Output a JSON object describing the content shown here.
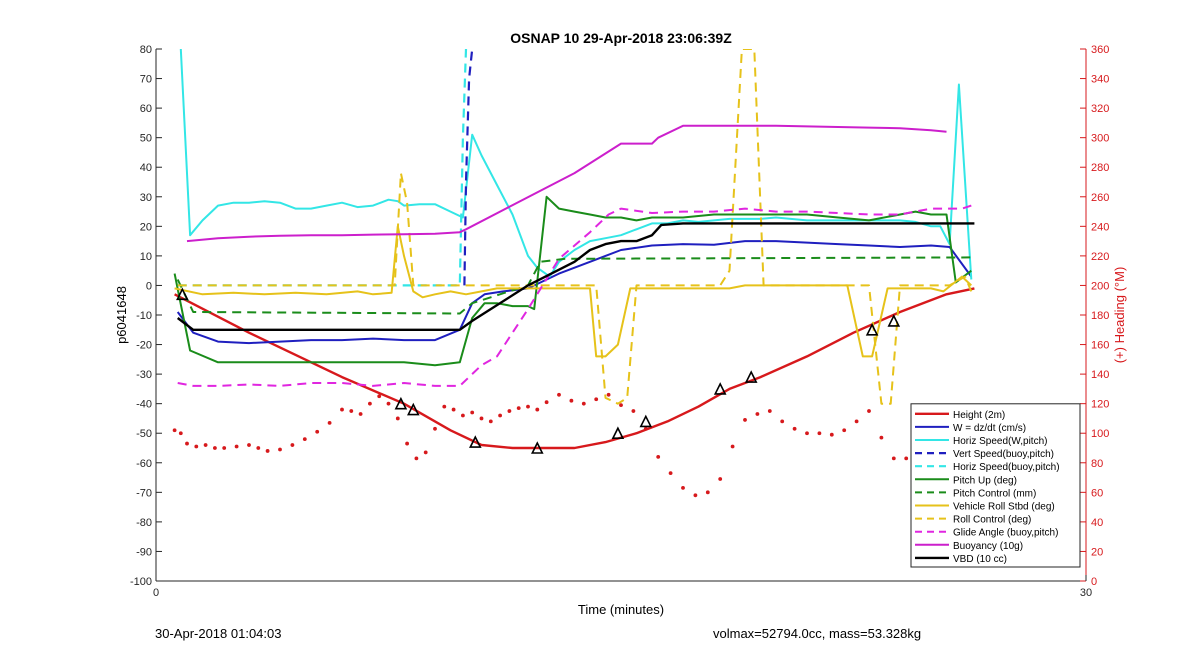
{
  "chart_data": {
    "type": "line",
    "title": "OSNAP 10 29-Apr-2018 23:06:39Z",
    "xlabel": "Time (minutes)",
    "ylabel": "p6041648",
    "ylabel_right": "(+) Heading (°M)",
    "xlim": [
      0,
      30
    ],
    "ylim": [
      -100,
      80
    ],
    "ylim_right": [
      0,
      360
    ],
    "x_ticks": [
      "0",
      "30"
    ],
    "y_ticks": [
      "80",
      "70",
      "60",
      "50",
      "40",
      "30",
      "20",
      "10",
      "0",
      "-10",
      "-20",
      "-30",
      "-40",
      "-50",
      "-60",
      "-70",
      "-80",
      "-90",
      "-100"
    ],
    "y_ticks_right": [
      "360",
      "340",
      "320",
      "300",
      "280",
      "260",
      "240",
      "220",
      "200",
      "180",
      "160",
      "140",
      "120",
      "100",
      "80",
      "60",
      "40",
      "20",
      "0"
    ],
    "grid": false,
    "legend_position": "bottom-right",
    "series": [
      {
        "name": "Height (2m)",
        "color": "#d7191c",
        "style": "solid",
        "width": 2.4,
        "x": [
          0.6,
          3.0,
          6.0,
          8.0,
          9.5,
          10.5,
          11.5,
          12.5,
          13.5,
          14.5,
          15.5,
          16.5,
          17.5,
          18.5,
          19.5,
          21.0,
          22.5,
          24.0,
          25.5,
          26.4
        ],
        "y": [
          -3,
          -16,
          -31,
          -40,
          -49,
          -54,
          -55,
          -55,
          -55,
          -53,
          -50,
          -46,
          -41,
          -35,
          -31,
          -24,
          -16,
          -9,
          -3,
          -1
        ]
      },
      {
        "name": "W = dz/dt (cm/s)",
        "color": "#1f1fbf",
        "style": "solid",
        "width": 2,
        "x": [
          0.7,
          1.2,
          2.0,
          3.0,
          4.0,
          5.0,
          6.0,
          7.0,
          8.0,
          9.0,
          9.8,
          10.2,
          10.6,
          11.2,
          12.0,
          13.0,
          14.0,
          15.0,
          16.0,
          17.0,
          18.0,
          19.0,
          20.0,
          21.0,
          22.0,
          23.0,
          24.0,
          25.0,
          25.6,
          26.3
        ],
        "y": [
          -9,
          -16,
          -19,
          -19.5,
          -19,
          -18.5,
          -18.5,
          -18,
          -18.5,
          -18.5,
          -15,
          -6,
          -3,
          -2,
          -1,
          4,
          8,
          12,
          13.5,
          14,
          13.8,
          15,
          15,
          14.5,
          14,
          13.5,
          13,
          13.5,
          13,
          3
        ]
      },
      {
        "name": "Horiz Speed(W,pitch)",
        "color": "#33e6e6",
        "style": "solid",
        "width": 2,
        "x": [
          0.8,
          1.1,
          1.5,
          2.0,
          2.5,
          3.0,
          3.5,
          4.0,
          4.5,
          5.0,
          5.5,
          6.0,
          6.5,
          7.0,
          7.5,
          7.8,
          8.0,
          8.5,
          9.0,
          9.5,
          9.9,
          10.2,
          10.5,
          11.0,
          11.5,
          12.0,
          12.3,
          12.7,
          13.0,
          13.5,
          14.0,
          14.5,
          15.0,
          15.5,
          16.0,
          16.5,
          17.0,
          17.5,
          18.0,
          18.5,
          19.0,
          19.5,
          20.0,
          21.0,
          22.0,
          23.0,
          24.0,
          24.5,
          25.0,
          25.3,
          25.6,
          25.9,
          26.3
        ],
        "y": [
          80,
          17,
          22,
          27,
          28,
          28,
          28.5,
          28,
          26,
          26,
          27,
          28,
          26.5,
          27,
          29,
          28.5,
          27,
          27.5,
          27.5,
          25,
          23,
          51,
          44,
          34,
          24,
          10,
          6,
          3,
          8,
          12,
          15,
          16,
          17,
          19,
          21,
          21,
          22,
          21.5,
          22,
          22.5,
          22.5,
          22.5,
          23,
          22,
          22,
          22,
          22,
          21.5,
          20,
          20,
          14,
          68,
          2
        ]
      },
      {
        "name": "Vert Speed(buoy,pitch)",
        "color": "#1f1fbf",
        "style": "dashed",
        "width": 2.2,
        "x": [
          9.95,
          10.0,
          10.1,
          10.2
        ],
        "y": [
          0,
          35,
          70,
          80
        ]
      },
      {
        "name": "Horiz Speed(buoy,pitch)",
        "color": "#33e6e6",
        "style": "dashed",
        "width": 2.2,
        "x": [
          0.7,
          9.8,
          9.8,
          9.9,
          10.0
        ],
        "y": [
          0,
          0,
          0,
          50,
          80
        ]
      },
      {
        "name": "Pitch Up (deg)",
        "color": "#1a8c1a",
        "style": "solid",
        "width": 2,
        "x": [
          0.6,
          1.1,
          2.0,
          3.0,
          4.0,
          5.0,
          6.0,
          7.0,
          8.0,
          9.0,
          9.8,
          10.2,
          10.6,
          11.0,
          11.5,
          12.0,
          12.2,
          12.6,
          13.0,
          13.5,
          14.0,
          14.5,
          15.0,
          15.5,
          16.0,
          17.0,
          18.0,
          19.0,
          20.0,
          21.0,
          22.0,
          23.0,
          24.0,
          24.5,
          25.0,
          25.5,
          25.8,
          26.3
        ],
        "y": [
          4,
          -22,
          -26,
          -26,
          -26,
          -26,
          -26,
          -26,
          -26,
          -27,
          -26,
          -11,
          -6,
          -6,
          -7,
          -7,
          -8,
          30,
          26,
          25,
          24,
          23,
          23,
          22,
          23,
          23,
          24,
          24,
          24,
          24,
          23,
          22,
          24,
          25,
          24,
          24,
          1,
          5
        ]
      },
      {
        "name": "Pitch Control (mm)",
        "color": "#1a8c1a",
        "style": "dashed",
        "width": 2,
        "x": [
          0.7,
          1.2,
          9.8,
          10.2,
          12.0,
          12.4,
          13.2,
          26.4
        ],
        "y": [
          2,
          -9,
          -9.5,
          -6,
          0,
          8,
          9,
          9.5
        ]
      },
      {
        "name": "Vehicle Roll Stbd (deg)",
        "color": "#e6c21a",
        "style": "solid",
        "width": 2,
        "x": [
          0.6,
          1.5,
          2.5,
          3.5,
          4.5,
          5.5,
          6.5,
          7.0,
          7.6,
          7.8,
          8.0,
          8.3,
          8.6,
          9.0,
          9.5,
          10.0,
          10.5,
          11.0,
          11.5,
          12.0,
          12.5,
          13.0,
          13.5,
          14.0,
          14.2,
          14.5,
          14.9,
          15.3,
          15.6,
          16.0,
          16.5,
          17.0,
          17.5,
          18.0,
          18.5,
          19.0,
          19.5,
          20.0,
          20.5,
          21.0,
          22.0,
          22.3,
          22.8,
          23.1,
          23.6,
          24.0,
          24.5,
          25.0,
          25.4,
          26.0,
          26.3
        ],
        "y": [
          -1,
          -3,
          -2.5,
          -3,
          -2.5,
          -3,
          -2,
          -3,
          -2.5,
          20,
          10,
          -2,
          -4,
          -3,
          -2,
          -3,
          -2,
          -1,
          -1,
          -1,
          -1,
          -1,
          -1,
          -1,
          -24,
          -24,
          -20,
          -1,
          -1,
          -1,
          -1,
          -1,
          -1,
          -1,
          -1,
          0,
          0,
          0,
          0,
          0,
          0,
          0,
          -24,
          -24,
          -1,
          -1,
          -1,
          -1,
          -2,
          3,
          0
        ]
      },
      {
        "name": "Roll Control (deg)",
        "color": "#e6c21a",
        "style": "dashed",
        "width": 2,
        "x": [
          0.7,
          7.5,
          7.7,
          7.9,
          8.1,
          8.3,
          14.2,
          14.5,
          14.9,
          15.2,
          15.5,
          18.2,
          18.5,
          18.9,
          19.3,
          19.6,
          22.7,
          23.0,
          23.4,
          23.7,
          24.0,
          25.6,
          26.1,
          26.3
        ],
        "y": [
          0,
          0,
          0,
          38,
          28,
          0,
          0,
          -38,
          -40,
          -38,
          0,
          0,
          5,
          80,
          80,
          0,
          0,
          0,
          -40,
          -40,
          0,
          0,
          3,
          -2
        ]
      },
      {
        "name": "Glide Angle (buoy,pitch)",
        "color": "#e026e0",
        "style": "dashed",
        "width": 2,
        "x": [
          0.7,
          1.2,
          2.0,
          3.0,
          4.0,
          5.0,
          6.0,
          7.0,
          8.0,
          9.0,
          9.8,
          10.5,
          11.0,
          12.0,
          13.0,
          14.0,
          14.6,
          15.0,
          16.0,
          17.0,
          18.0,
          19.0,
          20.0,
          21.0,
          22.0,
          23.0,
          24.0,
          25.0,
          26.0,
          26.3
        ],
        "y": [
          -33,
          -34,
          -34,
          -33.5,
          -34,
          -33,
          -33,
          -34,
          -33,
          -34,
          -34,
          -27,
          -24,
          -8,
          9,
          18,
          24,
          26,
          24.5,
          25,
          25,
          26,
          25,
          25,
          24.5,
          24,
          24,
          26,
          26,
          27
        ]
      },
      {
        "name": "Buoyancy (10g)",
        "color": "#cc1fcc",
        "style": "solid",
        "width": 2,
        "x": [
          1.0,
          2.0,
          3.0,
          4.0,
          5.0,
          6.0,
          7.0,
          8.0,
          9.0,
          9.8,
          10.0,
          13.5,
          15.0,
          15.5,
          16.0,
          16.2,
          17.0,
          18.0,
          19.0,
          20.0,
          21.0,
          22.0,
          23.0,
          24.0,
          25.0,
          25.5
        ],
        "y": [
          15,
          16,
          16.5,
          16.8,
          17,
          17,
          17.2,
          17.3,
          17.5,
          18,
          19,
          38,
          48,
          48,
          48,
          50,
          54,
          54,
          54,
          54,
          53.8,
          53.6,
          53.4,
          53.2,
          52.5,
          52
        ]
      },
      {
        "name": "VBD (10 cc)",
        "color": "#000000",
        "style": "solid",
        "width": 2.4,
        "x": [
          0.7,
          1.2,
          2.0,
          5.0,
          8.0,
          9.8,
          10.2,
          12.0,
          13.5,
          14.0,
          14.5,
          15.0,
          15.5,
          16.0,
          16.3,
          17.0,
          20.0,
          24.0,
          26.4
        ],
        "y": [
          -11,
          -15,
          -15,
          -15,
          -15,
          -15,
          -12,
          0,
          8,
          12,
          14,
          15,
          15,
          17,
          20.5,
          21,
          21,
          21,
          21
        ]
      }
    ],
    "heading_series": {
      "name": "Heading",
      "color": "#d7191c",
      "style": "dotted",
      "axis": "right",
      "x": [
        0.6,
        0.8,
        1.0,
        1.3,
        1.6,
        1.9,
        2.2,
        2.6,
        3.0,
        3.3,
        3.6,
        4.0,
        4.4,
        4.8,
        5.2,
        5.6,
        6.0,
        6.3,
        6.6,
        6.9,
        7.2,
        7.5,
        7.8,
        8.1,
        8.4,
        8.7,
        9.0,
        9.3,
        9.6,
        9.9,
        10.2,
        10.5,
        10.8,
        11.1,
        11.4,
        11.7,
        12.0,
        12.3,
        12.6,
        13.0,
        13.4,
        13.8,
        14.2,
        14.6,
        15.0,
        15.4,
        15.8,
        16.2,
        16.6,
        17.0,
        17.4,
        17.8,
        18.2,
        18.6,
        19.0,
        19.4,
        19.8,
        20.2,
        20.6,
        21.0,
        21.4,
        21.8,
        22.2,
        22.6,
        23.0,
        23.4,
        23.8,
        24.2,
        24.6,
        25.0,
        25.4,
        25.8
      ],
      "y": [
        102,
        100,
        93,
        91,
        92,
        90,
        90,
        91,
        92,
        90,
        88,
        89,
        92,
        96,
        101,
        107,
        116,
        115,
        113,
        120,
        125,
        120,
        110,
        93,
        83,
        87,
        103,
        118,
        116,
        112,
        114,
        110,
        108,
        112,
        115,
        117,
        118,
        116,
        121,
        126,
        122,
        120,
        123,
        126,
        119,
        115,
        103,
        84,
        73,
        63,
        58,
        60,
        69,
        91,
        109,
        113,
        115,
        108,
        103,
        100,
        100,
        99,
        102,
        108,
        115,
        97,
        83,
        83,
        87,
        87,
        83,
        83
      ]
    },
    "markers": {
      "shape": "triangle",
      "on_series": "Height (2m)",
      "x": [
        0.85,
        7.9,
        8.3,
        10.3,
        12.3,
        14.9,
        15.8,
        18.2,
        19.2,
        23.1,
        23.8
      ],
      "y": [
        -3,
        -40,
        -42,
        -53,
        -55,
        -50,
        -46,
        -35,
        -31,
        -15,
        -12
      ]
    }
  },
  "footer": {
    "left": "30-Apr-2018 01:04:03",
    "right": "volmax=52794.0cc, mass=53.328kg"
  }
}
